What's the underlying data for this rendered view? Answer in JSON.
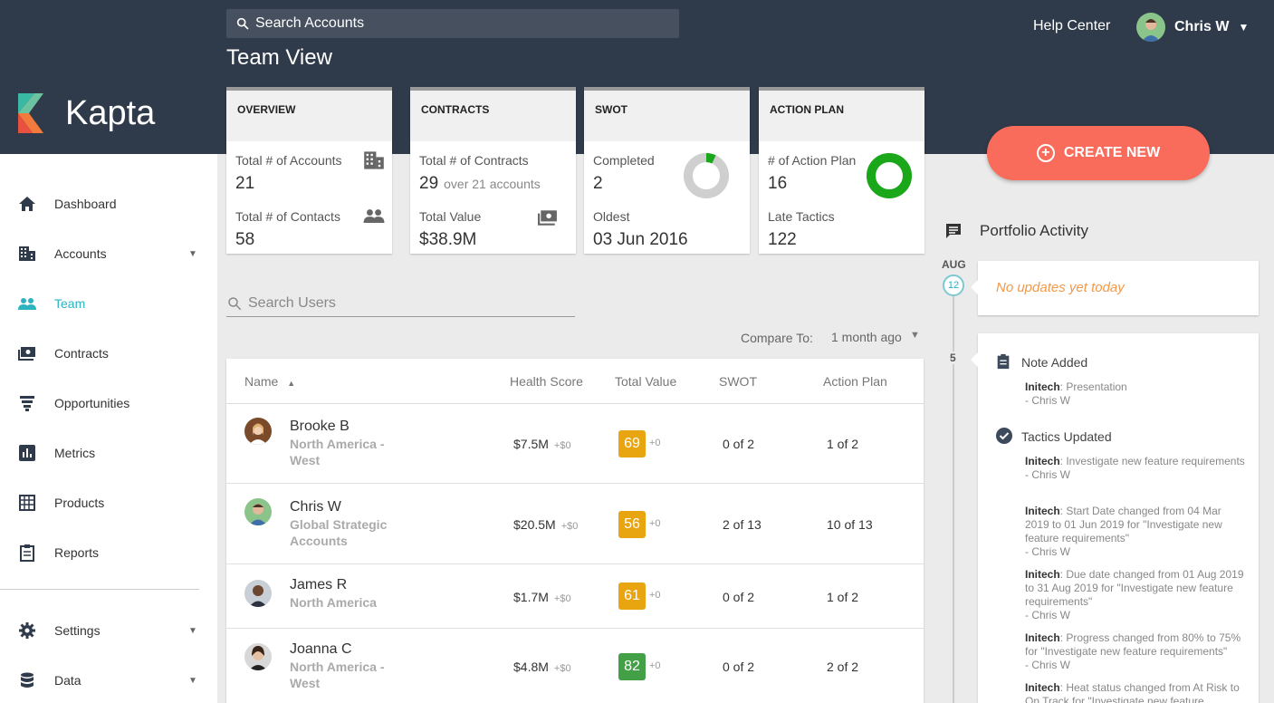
{
  "brand": {
    "name": "Kapta"
  },
  "header": {
    "search_placeholder": "Search Accounts",
    "page_title": "Team View",
    "help_center": "Help Center",
    "user_name": "Chris W"
  },
  "sidebar": {
    "items": [
      {
        "label": "Dashboard",
        "icon": "home-icon"
      },
      {
        "label": "Accounts",
        "icon": "building-icon"
      },
      {
        "label": "Team",
        "icon": "people-icon"
      },
      {
        "label": "Contracts",
        "icon": "money-icon"
      },
      {
        "label": "Opportunities",
        "icon": "funnel-icon"
      },
      {
        "label": "Metrics",
        "icon": "bar-chart-icon"
      },
      {
        "label": "Products",
        "icon": "grid-icon"
      },
      {
        "label": "Reports",
        "icon": "clipboard-icon"
      },
      {
        "label": "Settings",
        "icon": "gear-icon"
      },
      {
        "label": "Data",
        "icon": "database-icon"
      }
    ],
    "active": "Team"
  },
  "cards": {
    "overview": {
      "title": "OVERVIEW",
      "label1": "Total # of Accounts",
      "value1": "21",
      "label2": "Total # of Contacts",
      "value2": "58"
    },
    "contracts": {
      "title": "CONTRACTS",
      "label1": "Total # of Contracts",
      "value1": "29",
      "sub1": "over 21 accounts",
      "label2": "Total Value",
      "value2": "$38.9M"
    },
    "swot": {
      "title": "SWOT",
      "label1": "Completed",
      "value1": "2",
      "label2": "Oldest",
      "value2": "03 Jun 2016",
      "donut_fraction": 0.07
    },
    "action_plan": {
      "title": "ACTION PLAN",
      "label1": "# of Action Plan",
      "value1": "16",
      "label2": "Late Tactics",
      "value2": "122",
      "donut_fraction": 1.0
    }
  },
  "create_button": {
    "label": "CREATE NEW"
  },
  "users": {
    "search_placeholder": "Search Users",
    "compare_label": "Compare To:",
    "compare_value": "1 month ago",
    "columns": {
      "name": "Name",
      "health": "Health Score",
      "total": "Total Value",
      "swot": "SWOT",
      "plan": "Action Plan"
    },
    "rows": [
      {
        "name": "Brooke B",
        "region": "North America - West",
        "total": "$7.5M",
        "total_delta": "+$0",
        "score": "69",
        "score_delta": "+0",
        "swot": "0 of 2",
        "plan": "1 of 2",
        "color": "#e8a50f"
      },
      {
        "name": "Chris W",
        "region": "Global Strategic Accounts",
        "total": "$20.5M",
        "total_delta": "+$0",
        "score": "56",
        "score_delta": "+0",
        "swot": "2 of 13",
        "plan": "10 of 13",
        "color": "#e8a50f"
      },
      {
        "name": "James R",
        "region": "North America",
        "total": "$1.7M",
        "total_delta": "+$0",
        "score": "61",
        "score_delta": "+0",
        "swot": "0 of 2",
        "plan": "1 of 2",
        "color": "#e8a50f"
      },
      {
        "name": "Joanna C",
        "region": "North America - West",
        "total": "$4.8M",
        "total_delta": "+$0",
        "score": "82",
        "score_delta": "+0",
        "swot": "0 of 2",
        "plan": "2 of 2",
        "color": "#43a047"
      }
    ]
  },
  "activity": {
    "title": "Portfolio Activity",
    "month": "AUG",
    "day1": "12",
    "no_updates": "No updates yet today",
    "day2": "5",
    "events": [
      {
        "title": "Note Added",
        "entries": [
          {
            "account": "Initech",
            "text": ": Presentation",
            "by": "- Chris W"
          }
        ]
      },
      {
        "title": "Tactics Updated",
        "entries": [
          {
            "account": "Initech",
            "text": ": Investigate new feature requirements",
            "by": "- Chris W"
          },
          {
            "account": "Initech",
            "text": ": Start Date changed from 04 Mar 2019 to 01 Jun 2019 for \"Investigate new feature requirements\"",
            "by": "- Chris W"
          },
          {
            "account": "Initech",
            "text": ": Due date changed from 01 Aug 2019 to 31 Aug 2019 for \"Investigate new feature requirements\"",
            "by": "- Chris W"
          },
          {
            "account": "Initech",
            "text": ": Progress changed from 80% to 75% for \"Investigate new feature requirements\"",
            "by": "- Chris W"
          },
          {
            "account": "Initech",
            "text": ": Heat status changed from At Risk to On Track for \"Investigate new feature",
            "by": ""
          }
        ]
      }
    ]
  }
}
